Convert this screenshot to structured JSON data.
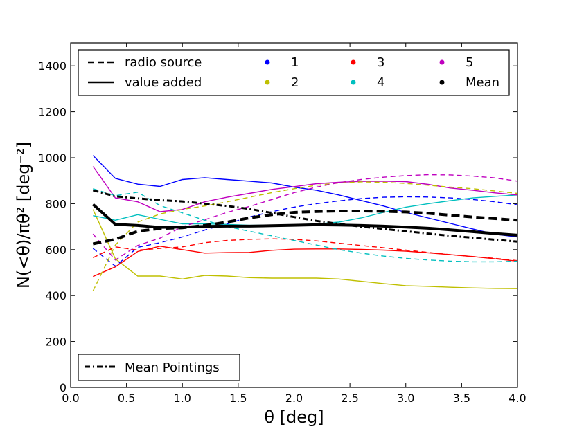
{
  "chart_data": {
    "type": "line",
    "title": "",
    "xlabel": "θ [deg]",
    "ylabel": "N(<θ)/πθ² [deg⁻²]",
    "xlim": [
      0.0,
      4.0
    ],
    "ylim": [
      0,
      1500
    ],
    "xticks": [
      0.0,
      0.5,
      1.0,
      1.5,
      2.0,
      2.5,
      3.0,
      3.5,
      4.0
    ],
    "xtick_labels": [
      "0.0",
      "0.5",
      "1.0",
      "1.5",
      "2.0",
      "2.5",
      "3.0",
      "3.5",
      "4.0"
    ],
    "yticks": [
      0,
      200,
      400,
      600,
      800,
      1000,
      1200,
      1400
    ],
    "ytick_labels": [
      "0",
      "200",
      "400",
      "600",
      "800",
      "1000",
      "1200",
      "1400"
    ],
    "legend_main": {
      "placement": "top",
      "style_entries": [
        {
          "label": "radio source",
          "style": "dashed"
        },
        {
          "label": "value added",
          "style": "solid"
        }
      ],
      "color_entries": [
        {
          "label": "1",
          "color": "#0000ff"
        },
        {
          "label": "2",
          "color": "#bfbf00"
        },
        {
          "label": "3",
          "color": "#ff0000"
        },
        {
          "label": "4",
          "color": "#00bfbf"
        },
        {
          "label": "5",
          "color": "#bf00bf"
        },
        {
          "label": "Mean",
          "color": "#000000"
        }
      ]
    },
    "legend_pointings": {
      "placement": "bottom-left",
      "label": "Mean Pointings",
      "style": "dashdot"
    },
    "series": [
      {
        "name": "1",
        "kind": "value added",
        "style": "solid",
        "color": "#0000ff",
        "width": 1.4,
        "x": [
          0.2,
          0.4,
          0.6,
          0.8,
          1.0,
          1.2,
          1.4,
          1.6,
          1.8,
          2.0,
          2.2,
          2.4,
          2.6,
          2.8,
          3.0,
          3.2,
          3.4,
          3.6,
          3.8,
          4.0
        ],
        "y": [
          1010,
          910,
          885,
          875,
          905,
          913,
          905,
          898,
          890,
          872,
          858,
          838,
          814,
          790,
          762,
          738,
          714,
          690,
          667,
          655
        ]
      },
      {
        "name": "2",
        "kind": "value added",
        "style": "solid",
        "color": "#bfbf00",
        "width": 1.4,
        "x": [
          0.2,
          0.4,
          0.6,
          0.8,
          1.0,
          1.2,
          1.4,
          1.6,
          1.8,
          2.0,
          2.2,
          2.4,
          2.6,
          2.8,
          3.0,
          3.2,
          3.4,
          3.6,
          3.8,
          4.0
        ],
        "y": [
          775,
          560,
          485,
          485,
          472,
          488,
          485,
          478,
          476,
          476,
          476,
          472,
          462,
          452,
          443,
          440,
          436,
          433,
          431,
          430
        ]
      },
      {
        "name": "3",
        "kind": "value added",
        "style": "solid",
        "color": "#ff0000",
        "width": 1.4,
        "x": [
          0.2,
          0.4,
          0.6,
          0.8,
          1.0,
          1.2,
          1.4,
          1.6,
          1.8,
          2.0,
          2.2,
          2.4,
          2.6,
          2.8,
          3.0,
          3.2,
          3.4,
          3.6,
          3.8,
          4.0
        ],
        "y": [
          483,
          525,
          592,
          615,
          600,
          585,
          587,
          588,
          597,
          602,
          603,
          603,
          601,
          598,
          593,
          586,
          578,
          570,
          560,
          550
        ]
      },
      {
        "name": "4",
        "kind": "value added",
        "style": "solid",
        "color": "#00bfbf",
        "width": 1.4,
        "x": [
          0.2,
          0.4,
          0.6,
          0.8,
          1.0,
          1.2,
          1.4,
          1.6,
          1.8,
          2.0,
          2.2,
          2.4,
          2.6,
          2.8,
          3.0,
          3.2,
          3.4,
          3.6,
          3.8,
          4.0
        ],
        "y": [
          748,
          728,
          752,
          732,
          712,
          712,
          710,
          706,
          707,
          708,
          712,
          720,
          738,
          762,
          785,
          800,
          813,
          825,
          832,
          838
        ]
      },
      {
        "name": "5",
        "kind": "value added",
        "style": "solid",
        "color": "#bf00bf",
        "width": 1.4,
        "x": [
          0.2,
          0.4,
          0.6,
          0.8,
          1.0,
          1.2,
          1.4,
          1.6,
          1.8,
          2.0,
          2.2,
          2.4,
          2.6,
          2.8,
          3.0,
          3.2,
          3.4,
          3.6,
          3.8,
          4.0
        ],
        "y": [
          962,
          825,
          808,
          765,
          775,
          808,
          828,
          845,
          862,
          874,
          887,
          893,
          897,
          898,
          896,
          884,
          868,
          858,
          847,
          838
        ]
      },
      {
        "name": "1",
        "kind": "radio source",
        "style": "dashed",
        "color": "#0000ff",
        "width": 1.4,
        "x": [
          0.2,
          0.4,
          0.6,
          0.8,
          1.0,
          1.2,
          1.4,
          1.6,
          1.8,
          2.0,
          2.2,
          2.4,
          2.6,
          2.8,
          3.0,
          3.2,
          3.4,
          3.6,
          3.8,
          4.0
        ],
        "y": [
          605,
          528,
          610,
          630,
          655,
          685,
          712,
          742,
          765,
          785,
          800,
          812,
          822,
          828,
          830,
          829,
          825,
          818,
          808,
          795
        ]
      },
      {
        "name": "2",
        "kind": "radio source",
        "style": "dashed",
        "color": "#bfbf00",
        "width": 1.4,
        "x": [
          0.2,
          0.4,
          0.6,
          0.8,
          1.0,
          1.2,
          1.4,
          1.6,
          1.8,
          2.0,
          2.2,
          2.4,
          2.6,
          2.8,
          3.0,
          3.2,
          3.4,
          3.6,
          3.8,
          4.0
        ],
        "y": [
          420,
          620,
          720,
          755,
          775,
          790,
          808,
          828,
          848,
          865,
          880,
          890,
          895,
          893,
          888,
          880,
          872,
          865,
          855,
          845
        ]
      },
      {
        "name": "3",
        "kind": "radio source",
        "style": "dashed",
        "color": "#ff0000",
        "width": 1.4,
        "x": [
          0.2,
          0.4,
          0.6,
          0.8,
          1.0,
          1.2,
          1.4,
          1.6,
          1.8,
          2.0,
          2.2,
          2.4,
          2.6,
          2.8,
          3.0,
          3.2,
          3.4,
          3.6,
          3.8,
          4.0
        ],
        "y": [
          565,
          612,
          598,
          605,
          612,
          630,
          640,
          645,
          647,
          645,
          638,
          628,
          618,
          608,
          598,
          588,
          578,
          570,
          562,
          552
        ]
      },
      {
        "name": "4",
        "kind": "radio source",
        "style": "dashed",
        "color": "#00bfbf",
        "width": 1.4,
        "x": [
          0.2,
          0.4,
          0.6,
          0.8,
          1.0,
          1.2,
          1.4,
          1.6,
          1.8,
          2.0,
          2.2,
          2.4,
          2.6,
          2.8,
          3.0,
          3.2,
          3.4,
          3.6,
          3.8,
          4.0
        ],
        "y": [
          865,
          835,
          850,
          792,
          760,
          728,
          700,
          680,
          660,
          640,
          620,
          600,
          585,
          572,
          562,
          555,
          550,
          547,
          547,
          550
        ]
      },
      {
        "name": "5",
        "kind": "radio source",
        "style": "dashed",
        "color": "#bf00bf",
        "width": 1.4,
        "x": [
          0.2,
          0.4,
          0.6,
          0.8,
          1.0,
          1.2,
          1.4,
          1.6,
          1.8,
          2.0,
          2.2,
          2.4,
          2.6,
          2.8,
          3.0,
          3.2,
          3.4,
          3.6,
          3.8,
          4.0
        ],
        "y": [
          668,
          555,
          618,
          650,
          700,
          730,
          762,
          788,
          818,
          848,
          872,
          892,
          905,
          915,
          922,
          926,
          925,
          920,
          912,
          898
        ]
      },
      {
        "name": "Mean",
        "kind": "radio source",
        "style": "dashed",
        "color": "#000000",
        "width": 4,
        "x": [
          0.2,
          0.4,
          0.6,
          0.8,
          1.0,
          1.2,
          1.4,
          1.6,
          1.8,
          2.0,
          2.2,
          2.4,
          2.6,
          2.8,
          3.0,
          3.2,
          3.4,
          3.6,
          3.8,
          4.0
        ],
        "y": [
          625,
          645,
          680,
          692,
          695,
          705,
          720,
          738,
          752,
          762,
          766,
          768,
          768,
          767,
          764,
          758,
          750,
          742,
          735,
          728
        ]
      },
      {
        "name": "Mean",
        "kind": "value added",
        "style": "solid",
        "color": "#000000",
        "width": 4,
        "x": [
          0.2,
          0.4,
          0.6,
          0.8,
          1.0,
          1.2,
          1.4,
          1.6,
          1.8,
          2.0,
          2.2,
          2.4,
          2.6,
          2.8,
          3.0,
          3.2,
          3.4,
          3.6,
          3.8,
          4.0
        ],
        "y": [
          797,
          710,
          705,
          697,
          698,
          701,
          702,
          702,
          704,
          706,
          708,
          707,
          705,
          702,
          698,
          693,
          686,
          678,
          670,
          663
        ]
      },
      {
        "name": "Mean Pointings",
        "kind": "mean pointings",
        "style": "dashdot",
        "color": "#000000",
        "width": 3,
        "x": [
          0.2,
          0.4,
          0.6,
          0.8,
          1.0,
          1.2,
          1.4,
          1.6,
          1.8,
          2.0,
          2.2,
          2.4,
          2.6,
          2.8,
          3.0,
          3.2,
          3.4,
          3.6,
          3.8,
          4.0
        ],
        "y": [
          858,
          832,
          823,
          815,
          810,
          800,
          790,
          777,
          760,
          742,
          725,
          712,
          700,
          690,
          680,
          670,
          660,
          652,
          643,
          635
        ]
      }
    ]
  }
}
